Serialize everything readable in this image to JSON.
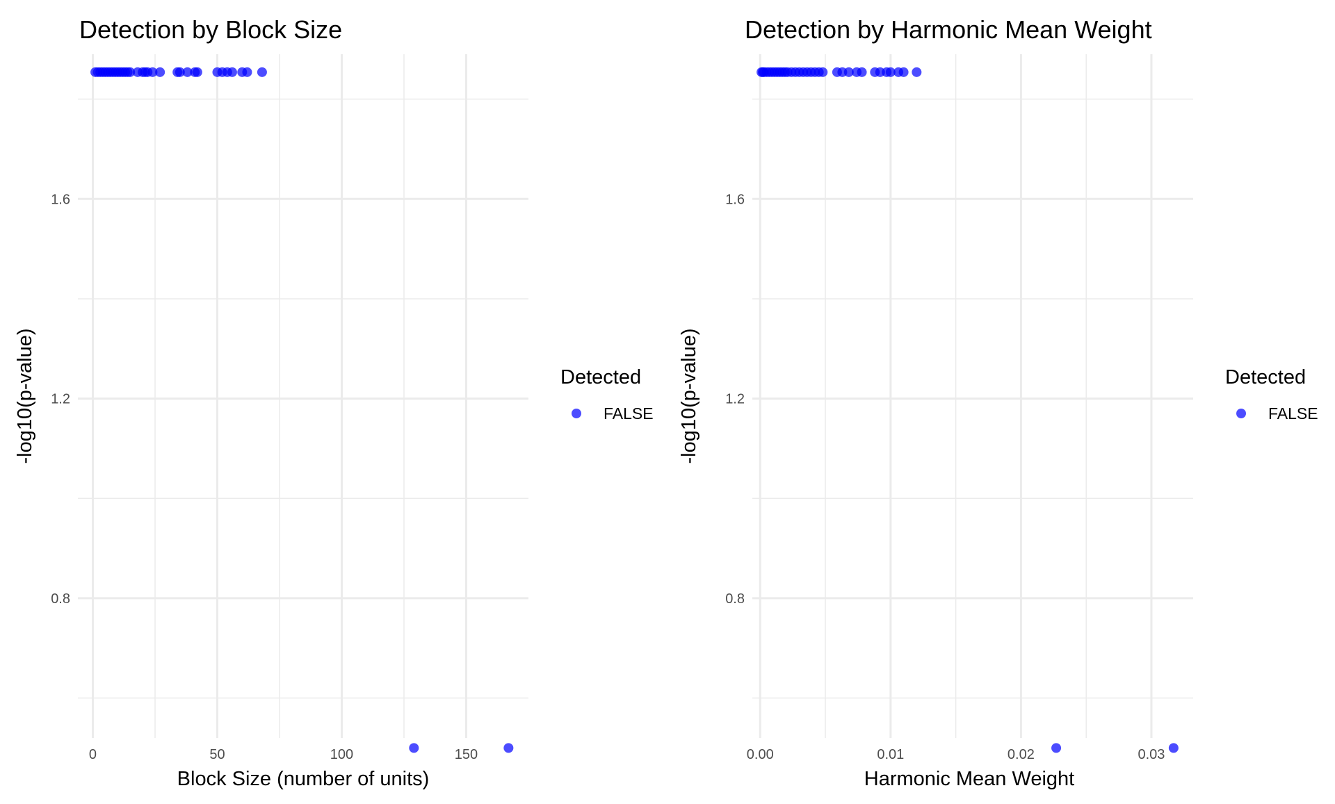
{
  "chart_data": [
    {
      "type": "scatter",
      "title": "Detection by Block Size",
      "xlabel": "Block Size (number of units)",
      "ylabel": "-log10(p-value)",
      "xlim": [
        -6,
        175
      ],
      "ylim": [
        0.52,
        1.89
      ],
      "x_major_ticks": [
        0,
        50,
        100,
        150
      ],
      "x_minor_ticks": [
        25,
        75,
        125
      ],
      "y_major_ticks": [
        0.8,
        1.2,
        1.6
      ],
      "y_minor_ticks": [
        0.6,
        1.0,
        1.4,
        1.8
      ],
      "x_tick_labels": [
        "0",
        "50",
        "100",
        "150"
      ],
      "y_tick_labels": [
        "0.8",
        "1.2",
        "1.6"
      ],
      "grid": true,
      "legend": {
        "title": "Detected",
        "position": "right",
        "entries": [
          {
            "label": "FALSE",
            "color": "#0000ff"
          }
        ]
      },
      "point_color": "#0000ff",
      "point_opacity": 0.7,
      "series": [
        {
          "name": "FALSE",
          "x": [
            1,
            2,
            3,
            4,
            5,
            6,
            7,
            8,
            9,
            10,
            11,
            12,
            13,
            14,
            15,
            18,
            20,
            21,
            22,
            24,
            27,
            34,
            35,
            38,
            41,
            42,
            50,
            52,
            54,
            56,
            60,
            62,
            68,
            129,
            167
          ],
          "y": [
            1.854,
            1.854,
            1.854,
            1.854,
            1.854,
            1.854,
            1.854,
            1.854,
            1.854,
            1.854,
            1.854,
            1.854,
            1.854,
            1.854,
            1.854,
            1.854,
            1.854,
            1.854,
            1.854,
            1.854,
            1.854,
            1.854,
            1.854,
            1.854,
            1.854,
            1.854,
            1.854,
            1.854,
            1.854,
            1.854,
            1.854,
            1.854,
            1.854,
            0.5,
            0.5
          ]
        }
      ]
    },
    {
      "type": "scatter",
      "title": "Detection by Harmonic Mean Weight",
      "xlabel": "Harmonic Mean Weight",
      "ylabel": "-log10(p-value)",
      "xlim": [
        -0.0006,
        0.0332
      ],
      "ylim": [
        0.52,
        1.89
      ],
      "x_major_ticks": [
        0,
        0.01,
        0.02,
        0.03
      ],
      "x_minor_ticks": [
        0.005,
        0.015,
        0.025
      ],
      "y_major_ticks": [
        0.8,
        1.2,
        1.6
      ],
      "y_minor_ticks": [
        0.6,
        1.0,
        1.4,
        1.8
      ],
      "x_tick_labels": [
        "0.00",
        "0.01",
        "0.02",
        "0.03"
      ],
      "y_tick_labels": [
        "0.8",
        "1.2",
        "1.6"
      ],
      "grid": true,
      "legend": {
        "title": "Detected",
        "position": "right",
        "entries": [
          {
            "label": "FALSE",
            "color": "#0000ff"
          }
        ]
      },
      "point_color": "#0000ff",
      "point_opacity": 0.7,
      "series": [
        {
          "name": "FALSE",
          "x": [
            0.0001,
            0.0002,
            0.0003,
            0.0005,
            0.0007,
            0.0009,
            0.0011,
            0.0013,
            0.0015,
            0.0017,
            0.0019,
            0.0021,
            0.0024,
            0.0027,
            0.003,
            0.0033,
            0.0036,
            0.0039,
            0.0042,
            0.0045,
            0.0048,
            0.0059,
            0.0063,
            0.0068,
            0.0074,
            0.0078,
            0.0088,
            0.0092,
            0.0097,
            0.01,
            0.0106,
            0.011,
            0.012,
            0.0227,
            0.0317
          ],
          "y": [
            1.854,
            1.854,
            1.854,
            1.854,
            1.854,
            1.854,
            1.854,
            1.854,
            1.854,
            1.854,
            1.854,
            1.854,
            1.854,
            1.854,
            1.854,
            1.854,
            1.854,
            1.854,
            1.854,
            1.854,
            1.854,
            1.854,
            1.854,
            1.854,
            1.854,
            1.854,
            1.854,
            1.854,
            1.854,
            1.854,
            1.854,
            1.854,
            1.854,
            0.5,
            0.5
          ]
        }
      ]
    }
  ]
}
